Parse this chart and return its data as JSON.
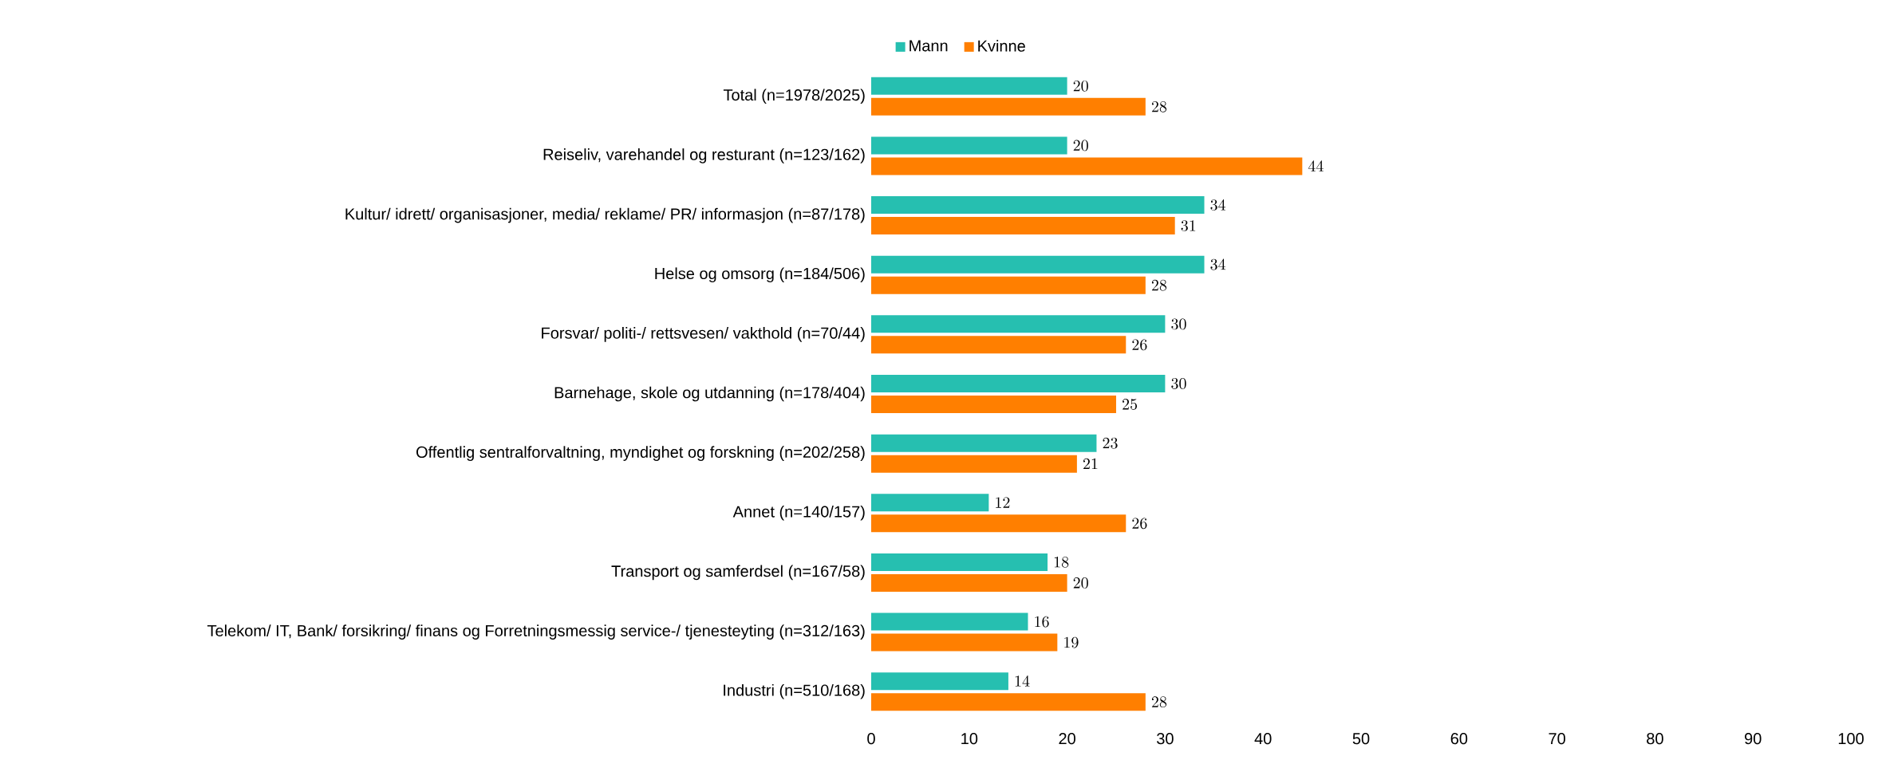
{
  "chart_data": {
    "type": "bar",
    "orientation": "horizontal",
    "categories": [
      "Total (n=1978/2025)",
      "Reiseliv, varehandel og resturant (n=123/162)",
      "Kultur/ idrett/ organisasjoner, media/ reklame/ PR/ informasjon (n=87/178)",
      "Helse og omsorg (n=184/506)",
      "Forsvar/ politi-/ rettsvesen/ vakthold (n=70/44)",
      "Barnehage, skole og utdanning (n=178/404)",
      "Offentlig sentralforvaltning, myndighet og forskning (n=202/258)",
      "Annet (n=140/157)",
      "Transport og samferdsel (n=167/58)",
      "Telekom/ IT, Bank/ forsikring/ finans og Forretningsmessig service-/ tjenesteyting (n=312/163)",
      "Industri (n=510/168)"
    ],
    "series": [
      {
        "name": "Mann",
        "color": "#26bfb0",
        "values": [
          20,
          20,
          34,
          34,
          30,
          30,
          23,
          12,
          18,
          16,
          14
        ]
      },
      {
        "name": "Kvinne",
        "color": "#ff7f00",
        "values": [
          28,
          44,
          31,
          28,
          26,
          25,
          21,
          26,
          20,
          19,
          28
        ]
      }
    ],
    "xlim": [
      0,
      100
    ],
    "xticks": [
      0,
      10,
      20,
      30,
      40,
      50,
      60,
      70,
      80,
      90,
      100
    ],
    "legend": "top",
    "data_labels": true
  }
}
